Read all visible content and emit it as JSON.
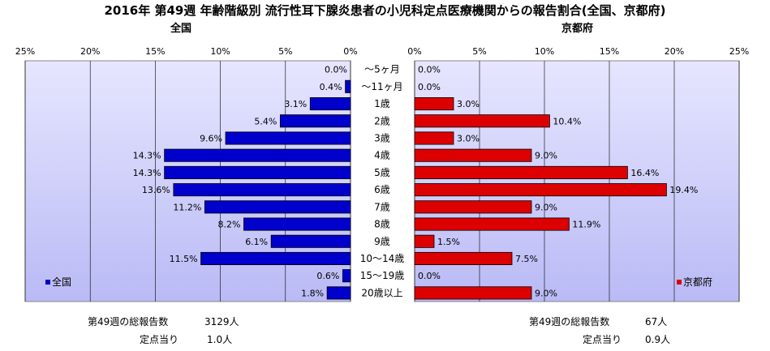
{
  "title": "2016年 第49週 年齢階級別 流行性耳下腺炎患者の小児科定点医療機関からの報告割合(全国、京都府)",
  "chart_data": [
    {
      "type": "bar",
      "orientation": "horizontal",
      "title": "全国",
      "direction": "right-to-left",
      "categories": [
        "～5ヶ月",
        "～11ヶ月",
        "1歳",
        "2歳",
        "3歳",
        "4歳",
        "5歳",
        "6歳",
        "7歳",
        "8歳",
        "9歳",
        "10～14歳",
        "15～19歳",
        "20歳以上"
      ],
      "series": [
        {
          "name": "全国",
          "color": "#0000cc",
          "values": [
            0.0,
            0.4,
            3.1,
            5.4,
            9.6,
            14.3,
            14.3,
            13.6,
            11.2,
            8.2,
            6.1,
            11.5,
            0.6,
            1.8
          ],
          "labels": [
            "0.0%",
            "0.4%",
            "3.1%",
            "5.4%",
            "9.6%",
            "14.3%",
            "14.3%",
            "13.6%",
            "11.2%",
            "8.2%",
            "6.1%",
            "11.5%",
            "0.6%",
            "1.8%"
          ]
        }
      ],
      "xlim": [
        0,
        25
      ],
      "ticks": [
        "25%",
        "20%",
        "15%",
        "10%",
        "5%",
        "0%"
      ],
      "legend": "bottom-left",
      "grid": true
    },
    {
      "type": "bar",
      "orientation": "horizontal",
      "title": "京都府",
      "direction": "left-to-right",
      "categories": [
        "～5ヶ月",
        "～11ヶ月",
        "1歳",
        "2歳",
        "3歳",
        "4歳",
        "5歳",
        "6歳",
        "7歳",
        "8歳",
        "9歳",
        "10～14歳",
        "15～19歳",
        "20歳以上"
      ],
      "series": [
        {
          "name": "京都府",
          "color": "#dd0000",
          "values": [
            0.0,
            0.0,
            3.0,
            10.4,
            3.0,
            9.0,
            16.4,
            19.4,
            9.0,
            11.9,
            1.5,
            7.5,
            0.0,
            9.0
          ],
          "labels": [
            "0.0%",
            "0.0%",
            "3.0%",
            "10.4%",
            "3.0%",
            "9.0%",
            "16.4%",
            "19.4%",
            "9.0%",
            "11.9%",
            "1.5%",
            "7.5%",
            "0.0%",
            "9.0%"
          ]
        }
      ],
      "xlim": [
        0,
        25
      ],
      "ticks": [
        "0%",
        "5%",
        "10%",
        "15%",
        "20%",
        "25%"
      ],
      "legend": "bottom-right",
      "grid": true
    }
  ],
  "stats": {
    "national": {
      "total_label": "第49週の総報告数",
      "total_value": "3129人",
      "per_label": "定点当り",
      "per_value": "1.0人"
    },
    "kyoto": {
      "total_label": "第49週の総報告数",
      "total_value": "67人",
      "per_label": "定点当り",
      "per_value": "0.9人"
    }
  }
}
